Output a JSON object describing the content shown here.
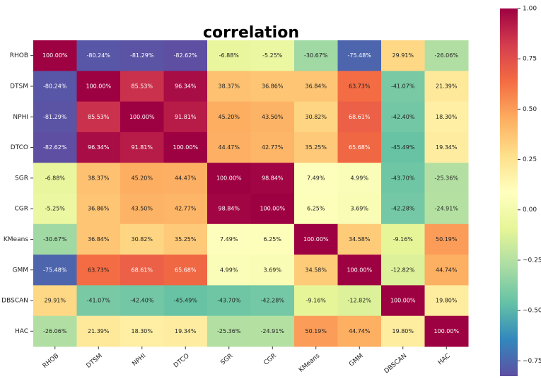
{
  "chart_data": {
    "type": "heatmap",
    "title": "correlation",
    "categories": [
      "RHOB",
      "DTSM",
      "NPHI",
      "DTCO",
      "SGR",
      "CGR",
      "KMeans",
      "GMM",
      "DBSCAN",
      "HAC"
    ],
    "values": [
      [
        1.0,
        -0.8024,
        -0.8129,
        -0.8262,
        -0.0688,
        -0.0525,
        -0.3067,
        -0.7548,
        0.2991,
        -0.2606
      ],
      [
        -0.8024,
        1.0,
        0.8553,
        0.9634,
        0.3837,
        0.3686,
        0.3684,
        0.6373,
        -0.4107,
        0.2139
      ],
      [
        -0.8129,
        0.8553,
        1.0,
        0.9181,
        0.452,
        0.435,
        0.3082,
        0.6861,
        -0.424,
        0.183
      ],
      [
        -0.8262,
        0.9634,
        0.9181,
        1.0,
        0.4447,
        0.4277,
        0.3525,
        0.6568,
        -0.4549,
        0.1934
      ],
      [
        -0.0688,
        0.3837,
        0.452,
        0.4447,
        1.0,
        0.9884,
        0.0749,
        0.0499,
        -0.437,
        -0.2536
      ],
      [
        -0.0525,
        0.3686,
        0.435,
        0.4277,
        0.9884,
        1.0,
        0.0625,
        0.0369,
        -0.4228,
        -0.2491
      ],
      [
        -0.3067,
        0.3684,
        0.3082,
        0.3525,
        0.0749,
        0.0625,
        1.0,
        0.3458,
        -0.0916,
        0.5019
      ],
      [
        -0.7548,
        0.6373,
        0.6861,
        0.6568,
        0.0499,
        0.0369,
        0.3458,
        1.0,
        -0.1282,
        0.4474
      ],
      [
        0.2991,
        -0.4107,
        -0.424,
        -0.4549,
        -0.437,
        -0.4228,
        -0.0916,
        -0.1282,
        1.0,
        0.198
      ],
      [
        -0.2606,
        0.2139,
        0.183,
        0.1934,
        -0.2536,
        -0.2491,
        0.5019,
        0.4474,
        0.198,
        1.0
      ]
    ],
    "value_labels": [
      [
        "100.00%",
        "-80.24%",
        "-81.29%",
        "-82.62%",
        "-6.88%",
        "-5.25%",
        "-30.67%",
        "-75.48%",
        "29.91%",
        "-26.06%"
      ],
      [
        "-80.24%",
        "100.00%",
        "85.53%",
        "96.34%",
        "38.37%",
        "36.86%",
        "36.84%",
        "63.73%",
        "-41.07%",
        "21.39%"
      ],
      [
        "-81.29%",
        "85.53%",
        "100.00%",
        "91.81%",
        "45.20%",
        "43.50%",
        "30.82%",
        "68.61%",
        "-42.40%",
        "18.30%"
      ],
      [
        "-82.62%",
        "96.34%",
        "91.81%",
        "100.00%",
        "44.47%",
        "42.77%",
        "35.25%",
        "65.68%",
        "-45.49%",
        "19.34%"
      ],
      [
        "-6.88%",
        "38.37%",
        "45.20%",
        "44.47%",
        "100.00%",
        "98.84%",
        "7.49%",
        "4.99%",
        "-43.70%",
        "-25.36%"
      ],
      [
        "-5.25%",
        "36.86%",
        "43.50%",
        "42.77%",
        "98.84%",
        "100.00%",
        "6.25%",
        "3.69%",
        "-42.28%",
        "-24.91%"
      ],
      [
        "-30.67%",
        "36.84%",
        "30.82%",
        "35.25%",
        "7.49%",
        "6.25%",
        "100.00%",
        "34.58%",
        "-9.16%",
        "50.19%"
      ],
      [
        "-75.48%",
        "63.73%",
        "68.61%",
        "65.68%",
        "4.99%",
        "3.69%",
        "34.58%",
        "100.00%",
        "-12.82%",
        "44.74%"
      ],
      [
        "29.91%",
        "-41.07%",
        "-42.40%",
        "-45.49%",
        "-43.70%",
        "-42.28%",
        "-9.16%",
        "-12.82%",
        "100.00%",
        "19.80%"
      ],
      [
        "-26.06%",
        "21.39%",
        "18.30%",
        "19.34%",
        "-25.36%",
        "-24.91%",
        "50.19%",
        "44.74%",
        "19.80%",
        "100.00%"
      ]
    ],
    "colormap": [
      "#5e4fa2",
      "#3288bd",
      "#66c2a5",
      "#abdda4",
      "#e6f598",
      "#ffffbf",
      "#fee08b",
      "#fdae61",
      "#f46d43",
      "#d53e4f",
      "#9e0142"
    ],
    "clim": [
      -0.8262,
      1.0
    ],
    "cticks": [
      {
        "value": 1.0,
        "label": "1.00"
      },
      {
        "value": 0.75,
        "label": "0.75"
      },
      {
        "value": 0.5,
        "label": "0.50"
      },
      {
        "value": 0.25,
        "label": "0.25"
      },
      {
        "value": 0.0,
        "label": "0.00"
      },
      {
        "value": -0.25,
        "label": "−0.25"
      },
      {
        "value": -0.5,
        "label": "−0.50"
      },
      {
        "value": -0.75,
        "label": "−0.75"
      }
    ]
  }
}
